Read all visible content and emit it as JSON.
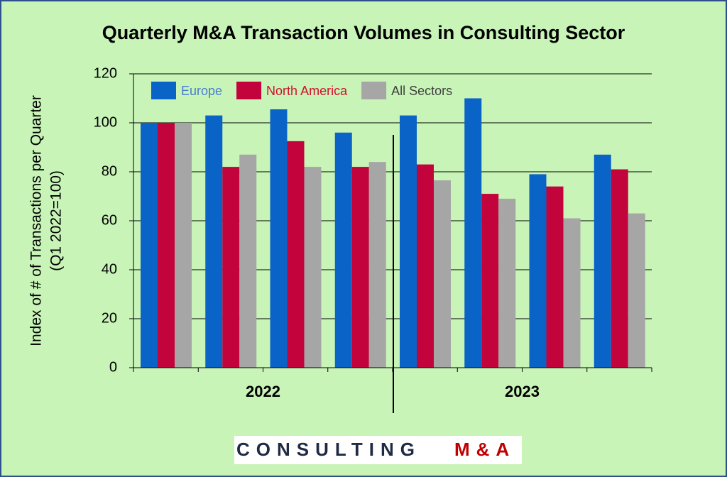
{
  "chart_data": {
    "type": "bar",
    "title": "Quarterly M&A Transaction Volumes in Consulting Sector",
    "y_label": [
      "Index of # of Transactions per Quarter",
      "(Q1 2022=100)"
    ],
    "categories": [
      null,
      null,
      null,
      null,
      null,
      null,
      null,
      null
    ],
    "x_groups": [
      "2022",
      "2023"
    ],
    "series": [
      {
        "name": "Europe",
        "color": "#0a63c6",
        "label_color": "#4a7cd0",
        "values": [
          100,
          103,
          105.5,
          96,
          103,
          110,
          79,
          87
        ]
      },
      {
        "name": "North America",
        "color": "#c3043c",
        "label_color": "#d0102c",
        "values": [
          100,
          82,
          92.5,
          82,
          83,
          71,
          74,
          81
        ]
      },
      {
        "name": "All Sectors",
        "color": "#a6a6a6",
        "label_color": "#404040",
        "values": [
          100,
          87,
          82,
          84,
          76.5,
          69,
          61,
          63
        ]
      }
    ],
    "ylim": [
      0,
      120
    ],
    "yticks": [
      0,
      20,
      40,
      60,
      80,
      100,
      120
    ],
    "grid": true,
    "legend": "top-left",
    "logo": {
      "word1": "CONSULTING",
      "word2": "M&A"
    }
  }
}
